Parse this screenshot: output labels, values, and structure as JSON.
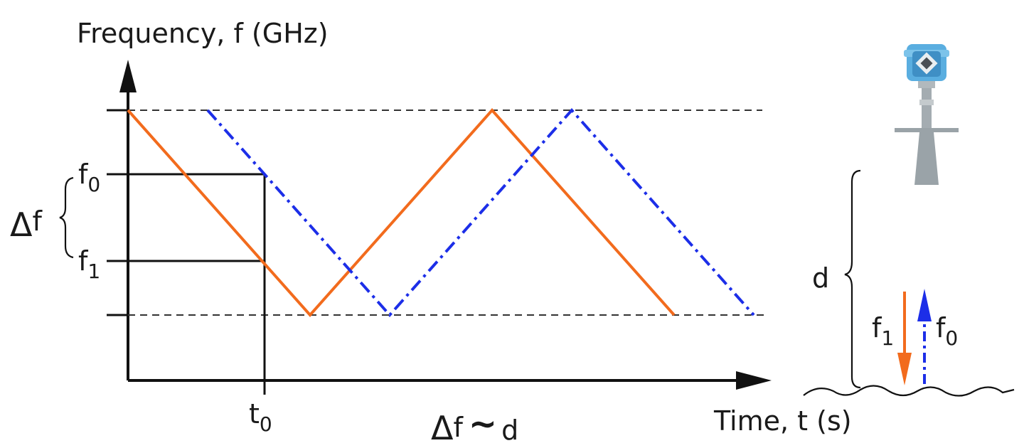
{
  "axes": {
    "y_label": "Frequency, f (GHz)",
    "x_label": "Time, t (s)"
  },
  "labels": {
    "f0": {
      "base": "f",
      "sub": "0"
    },
    "f1": {
      "base": "f",
      "sub": "1"
    },
    "t0": {
      "base": "t",
      "sub": "0"
    },
    "delta_f": {
      "sym": "Δ",
      "base": "f"
    },
    "relation": {
      "sym": "Δ",
      "base": "f",
      "tilde": "∼",
      "d": "d"
    },
    "distance": "d",
    "arrow_f1": {
      "base": "f",
      "sub": "1"
    },
    "arrow_f0": {
      "base": "f",
      "sub": "0"
    }
  },
  "colors": {
    "transmitted": "#f26b1d",
    "received": "#1c2ee8",
    "axis": "#111111",
    "guide": "#333333",
    "sensor_body": "#9aa3a8",
    "sensor_head": "#5aaee0"
  },
  "icons": {
    "sensor": "radar-level-transmitter-icon",
    "surface": "liquid-surface-wave"
  }
}
